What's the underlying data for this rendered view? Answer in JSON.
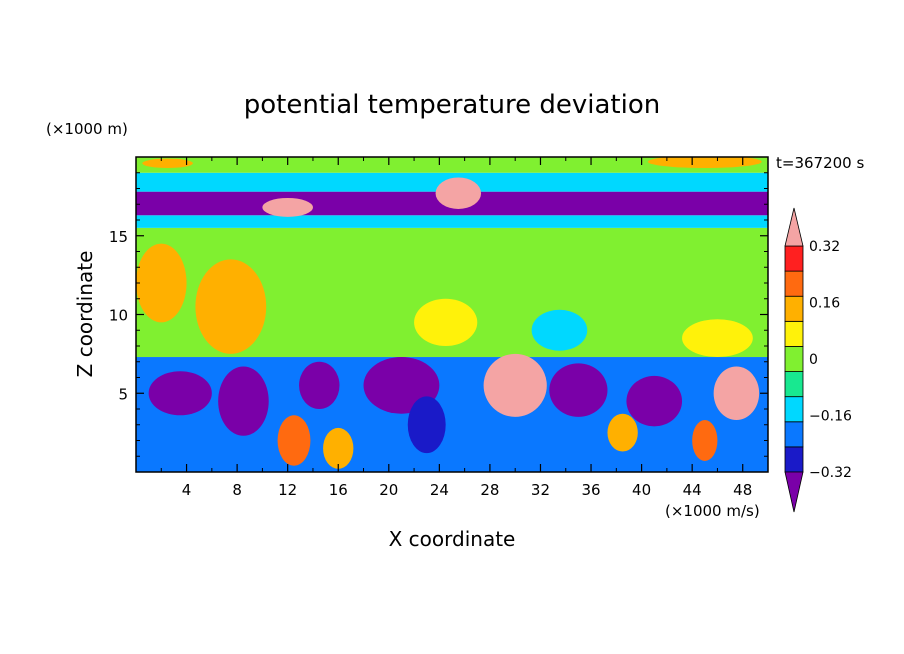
{
  "chart_data": {
    "type": "heatmap",
    "title": "potential temperature deviation",
    "xlabel": "X coordinate",
    "ylabel": "Z coordinate",
    "x_unit": "(×1000 m/s)",
    "y_unit": "(×1000 m)",
    "time_label": "t=367200 s",
    "xlim": [
      0,
      50
    ],
    "ylim": [
      0,
      20
    ],
    "x_ticks": [
      4,
      8,
      12,
      16,
      20,
      24,
      28,
      32,
      36,
      40,
      44,
      48
    ],
    "y_ticks": [
      5,
      10,
      15
    ],
    "colorbar": {
      "levels": [
        -0.4,
        -0.32,
        -0.24,
        -0.16,
        -0.08,
        0,
        0.08,
        0.16,
        0.24,
        0.32,
        0.4
      ],
      "tick_labels": [
        "0.32",
        "0.16",
        "0",
        "−0.16",
        "−0.32"
      ],
      "tick_values": [
        0.32,
        0.16,
        0,
        -0.16,
        -0.32
      ],
      "colors": [
        "#7a00a8",
        "#1a1ac8",
        "#0a78ff",
        "#00d8ff",
        "#18e890",
        "#80f030",
        "#fff20a",
        "#ffb000",
        "#ff6a10",
        "#ff2020",
        "#f4a4a4"
      ]
    },
    "layers": [
      {
        "zmin": 0,
        "zmax": 7.3,
        "value": -0.18
      },
      {
        "zmin": 7.3,
        "zmax": 15.5,
        "value": 0.03
      },
      {
        "zmin": 15.5,
        "zmax": 16.3,
        "value": -0.1
      },
      {
        "zmin": 16.3,
        "zmax": 17.8,
        "value": -0.35
      },
      {
        "zmin": 17.8,
        "zmax": 19.0,
        "value": -0.1
      },
      {
        "zmin": 19.0,
        "zmax": 20.0,
        "value": 0.05
      }
    ],
    "features": [
      {
        "x": 3.5,
        "z": 5.0,
        "rx": 2.5,
        "rz": 1.4,
        "value": -0.38
      },
      {
        "x": 8.5,
        "z": 4.5,
        "rx": 2.0,
        "rz": 2.2,
        "value": -0.36
      },
      {
        "x": 12.5,
        "z": 2.0,
        "rx": 1.3,
        "rz": 1.6,
        "value": 0.3
      },
      {
        "x": 14.5,
        "z": 5.5,
        "rx": 1.6,
        "rz": 1.5,
        "value": -0.38
      },
      {
        "x": 16.0,
        "z": 1.5,
        "rx": 1.2,
        "rz": 1.3,
        "value": 0.2
      },
      {
        "x": 21.0,
        "z": 5.5,
        "rx": 3.0,
        "rz": 1.8,
        "value": -0.38
      },
      {
        "x": 23.0,
        "z": 3.0,
        "rx": 1.5,
        "rz": 1.8,
        "value": -0.3
      },
      {
        "x": 30.0,
        "z": 5.5,
        "rx": 2.5,
        "rz": 2.0,
        "value": 0.42
      },
      {
        "x": 35.0,
        "z": 5.2,
        "rx": 2.3,
        "rz": 1.7,
        "value": -0.35
      },
      {
        "x": 38.5,
        "z": 2.5,
        "rx": 1.2,
        "rz": 1.2,
        "value": 0.2
      },
      {
        "x": 41.0,
        "z": 4.5,
        "rx": 2.2,
        "rz": 1.6,
        "value": -0.35
      },
      {
        "x": 45.0,
        "z": 2.0,
        "rx": 1.0,
        "rz": 1.3,
        "value": 0.3
      },
      {
        "x": 47.5,
        "z": 5.0,
        "rx": 1.8,
        "rz": 1.7,
        "value": 0.42
      },
      {
        "x": 2.0,
        "z": 12.0,
        "rx": 2.0,
        "rz": 2.5,
        "value": 0.17
      },
      {
        "x": 7.5,
        "z": 10.5,
        "rx": 2.8,
        "rz": 3.0,
        "value": 0.18
      },
      {
        "x": 24.5,
        "z": 9.5,
        "rx": 2.5,
        "rz": 1.5,
        "value": 0.13
      },
      {
        "x": 33.5,
        "z": 9.0,
        "rx": 2.2,
        "rz": 1.3,
        "value": -0.12
      },
      {
        "x": 46.0,
        "z": 8.5,
        "rx": 2.8,
        "rz": 1.2,
        "value": 0.1
      },
      {
        "x": 12.0,
        "z": 16.8,
        "rx": 2.0,
        "rz": 0.6,
        "value": 0.42
      },
      {
        "x": 25.5,
        "z": 17.7,
        "rx": 1.8,
        "rz": 1.0,
        "value": 0.42
      },
      {
        "x": 45.0,
        "z": 19.7,
        "rx": 4.5,
        "rz": 0.4,
        "value": 0.2
      },
      {
        "x": 2.5,
        "z": 19.6,
        "rx": 2.0,
        "rz": 0.3,
        "value": 0.16
      }
    ]
  }
}
